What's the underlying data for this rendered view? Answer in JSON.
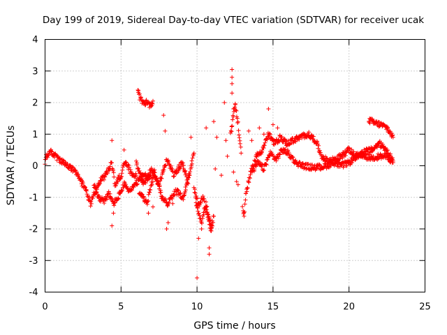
{
  "chart_data": {
    "type": "scatter",
    "title": "Day 199 of 2019, Sidereal Day-to-day VTEC variation (SDTVAR) for receiver ucak",
    "xlabel": "GPS time / hours",
    "ylabel": "SDTVAR / TECUs",
    "xlim": [
      0,
      25
    ],
    "ylim": [
      -4,
      4
    ],
    "xticks": [
      0,
      5,
      10,
      15,
      20,
      25
    ],
    "yticks": [
      -4,
      -3,
      -2,
      -1,
      0,
      1,
      2,
      3,
      4
    ],
    "xtick_labels": [
      "0",
      "5",
      "10",
      "15",
      "20",
      "25"
    ],
    "ytick_labels": [
      "-4",
      "-3",
      "-2",
      "-1",
      "0",
      "1",
      "2",
      "3",
      "4"
    ],
    "grid": true,
    "marker": "+",
    "series": [
      {
        "name": "SDTVAR",
        "color": "#ff0000",
        "tracks": [
          [
            [
              0.0,
              0.2
            ],
            [
              0.3,
              0.45
            ],
            [
              0.6,
              0.35
            ],
            [
              1.0,
              0.15
            ],
            [
              1.5,
              0.0
            ],
            [
              2.0,
              -0.2
            ],
            [
              2.5,
              -0.6
            ],
            [
              2.8,
              -0.9
            ],
            [
              3.0,
              -1.2
            ],
            [
              3.2,
              -0.9
            ],
            [
              3.6,
              -0.5
            ],
            [
              4.0,
              -0.3
            ],
            [
              4.4,
              0.1
            ],
            [
              4.6,
              -0.6
            ],
            [
              5.0,
              -0.3
            ],
            [
              5.3,
              0.2
            ],
            [
              5.6,
              -0.2
            ],
            [
              6.0,
              -0.3
            ]
          ],
          [
            [
              3.2,
              -0.6
            ],
            [
              3.5,
              -1.0
            ],
            [
              3.9,
              -1.1
            ],
            [
              4.2,
              -0.9
            ],
            [
              4.5,
              -1.2
            ],
            [
              4.8,
              -1.0
            ],
            [
              5.2,
              -0.6
            ],
            [
              5.6,
              -0.8
            ],
            [
              6.1,
              -0.5
            ],
            [
              6.5,
              -0.3
            ],
            [
              7.0,
              -0.4
            ]
          ],
          [
            [
              6.0,
              0.1
            ],
            [
              6.5,
              -0.6
            ],
            [
              7.0,
              -0.1
            ],
            [
              7.5,
              -0.6
            ],
            [
              8.0,
              0.2
            ],
            [
              8.5,
              -0.3
            ],
            [
              9.0,
              0.1
            ],
            [
              9.4,
              -0.5
            ],
            [
              9.8,
              0.4
            ]
          ],
          [
            [
              6.2,
              -0.8
            ],
            [
              6.7,
              -1.2
            ],
            [
              7.2,
              -0.2
            ],
            [
              7.7,
              -1.0
            ],
            [
              8.1,
              -1.2
            ],
            [
              8.6,
              -0.8
            ],
            [
              9.1,
              -1.0
            ],
            [
              9.5,
              -0.3
            ]
          ],
          [
            [
              9.8,
              -0.7
            ],
            [
              10.1,
              -1.3
            ],
            [
              10.4,
              -1.0
            ],
            [
              10.7,
              -1.6
            ],
            [
              11.0,
              -1.9
            ]
          ],
          [
            [
              9.9,
              -1.1
            ],
            [
              10.3,
              -1.8
            ],
            [
              10.6,
              -1.2
            ],
            [
              10.9,
              -2.1
            ],
            [
              11.1,
              -1.6
            ]
          ],
          [
            [
              6.1,
              2.35
            ],
            [
              6.3,
              2.1
            ],
            [
              6.5,
              1.95
            ],
            [
              6.7,
              2.05
            ],
            [
              6.9,
              1.9
            ],
            [
              7.1,
              2.05
            ]
          ],
          [
            [
              12.2,
              1.0
            ],
            [
              12.4,
              1.6
            ],
            [
              12.5,
              2.0
            ],
            [
              12.7,
              1.3
            ],
            [
              12.9,
              0.4
            ]
          ],
          [
            [
              13.0,
              -1.3
            ],
            [
              13.1,
              -1.6
            ],
            [
              13.2,
              -0.9
            ],
            [
              13.5,
              -0.3
            ],
            [
              13.9,
              0.3
            ],
            [
              14.3,
              0.5
            ],
            [
              14.7,
              1.0
            ],
            [
              15.1,
              0.7
            ],
            [
              15.5,
              0.9
            ],
            [
              15.9,
              0.7
            ],
            [
              16.3,
              0.8
            ],
            [
              16.8,
              0.9
            ],
            [
              17.3,
              1.0
            ],
            [
              17.8,
              0.8
            ],
            [
              18.2,
              0.3
            ],
            [
              18.6,
              0.15
            ],
            [
              19.0,
              0.2
            ],
            [
              19.5,
              0.3
            ],
            [
              20.0,
              0.5
            ],
            [
              20.5,
              0.3
            ],
            [
              21.0,
              0.45
            ],
            [
              21.5,
              0.5
            ],
            [
              22.0,
              0.7
            ],
            [
              22.5,
              0.5
            ],
            [
              22.9,
              0.15
            ]
          ],
          [
            [
              13.6,
              -0.2
            ],
            [
              14.0,
              0.1
            ],
            [
              14.4,
              -0.1
            ],
            [
              14.8,
              0.4
            ],
            [
              15.2,
              0.2
            ],
            [
              15.6,
              0.5
            ],
            [
              16.0,
              0.4
            ],
            [
              16.5,
              0.1
            ],
            [
              17.0,
              0.0
            ],
            [
              17.5,
              -0.05
            ],
            [
              18.0,
              -0.05
            ],
            [
              18.5,
              0.0
            ],
            [
              19.0,
              0.1
            ],
            [
              19.5,
              0.0
            ],
            [
              20.0,
              0.1
            ],
            [
              20.5,
              0.3
            ],
            [
              21.0,
              0.3
            ],
            [
              21.5,
              0.25
            ],
            [
              22.0,
              0.3
            ],
            [
              22.5,
              0.3
            ],
            [
              22.9,
              0.1
            ]
          ],
          [
            [
              21.3,
              1.45
            ],
            [
              21.7,
              1.35
            ],
            [
              22.1,
              1.3
            ],
            [
              22.5,
              1.2
            ],
            [
              22.9,
              0.9
            ]
          ]
        ],
        "points": [
          [
            0.0,
            0.05
          ],
          [
            4.4,
            -1.9
          ],
          [
            4.4,
            0.8
          ],
          [
            4.5,
            -1.5
          ],
          [
            5.2,
            0.5
          ],
          [
            6.8,
            -1.5
          ],
          [
            7.1,
            -1.3
          ],
          [
            7.8,
            1.6
          ],
          [
            7.9,
            1.1
          ],
          [
            8.0,
            -2.0
          ],
          [
            8.1,
            -1.8
          ],
          [
            8.4,
            -1.2
          ],
          [
            9.6,
            0.9
          ],
          [
            10.0,
            -3.55
          ],
          [
            10.1,
            -2.3
          ],
          [
            10.3,
            -2.0
          ],
          [
            10.8,
            -2.8
          ],
          [
            10.8,
            -2.6
          ],
          [
            10.9,
            -2.0
          ],
          [
            10.6,
            1.2
          ],
          [
            11.1,
            1.4
          ],
          [
            11.3,
            0.9
          ],
          [
            11.2,
            -0.1
          ],
          [
            11.6,
            -0.3
          ],
          [
            11.8,
            2.0
          ],
          [
            11.9,
            0.8
          ],
          [
            12.0,
            0.3
          ],
          [
            12.3,
            3.05
          ],
          [
            12.3,
            2.8
          ],
          [
            12.3,
            2.6
          ],
          [
            12.3,
            2.3
          ],
          [
            12.4,
            1.8
          ],
          [
            12.4,
            -0.2
          ],
          [
            12.6,
            -0.5
          ],
          [
            12.7,
            -0.6
          ],
          [
            13.4,
            1.1
          ],
          [
            13.6,
            0.8
          ],
          [
            14.1,
            1.2
          ],
          [
            14.4,
            1.0
          ],
          [
            14.7,
            1.8
          ],
          [
            15.0,
            1.3
          ],
          [
            15.3,
            1.2
          ]
        ]
      }
    ]
  }
}
